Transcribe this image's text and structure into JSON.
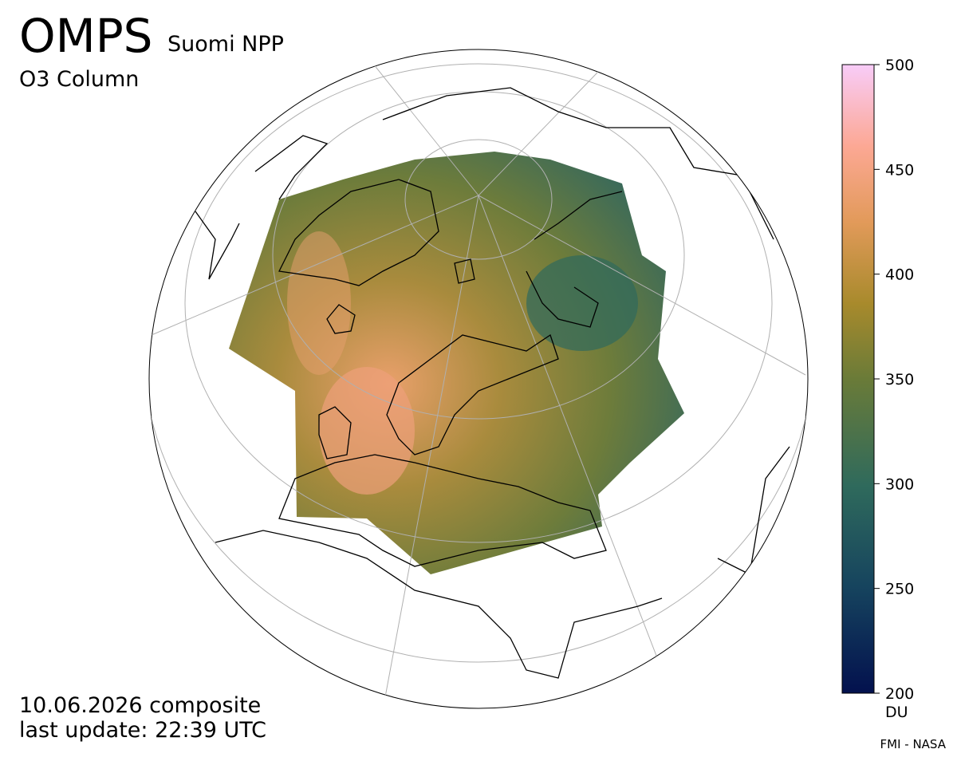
{
  "header": {
    "title": "OMPS",
    "satellite": "Suomi NPP",
    "product": "O3 Column"
  },
  "footer": {
    "date": "10.06.2026 composite",
    "update": "last update: 22:39 UTC",
    "credit": "FMI - NASA"
  },
  "colorbar": {
    "range": [
      200,
      500
    ],
    "ticks": [
      200,
      250,
      300,
      350,
      400,
      450,
      500
    ],
    "unit": "DU"
  }
}
